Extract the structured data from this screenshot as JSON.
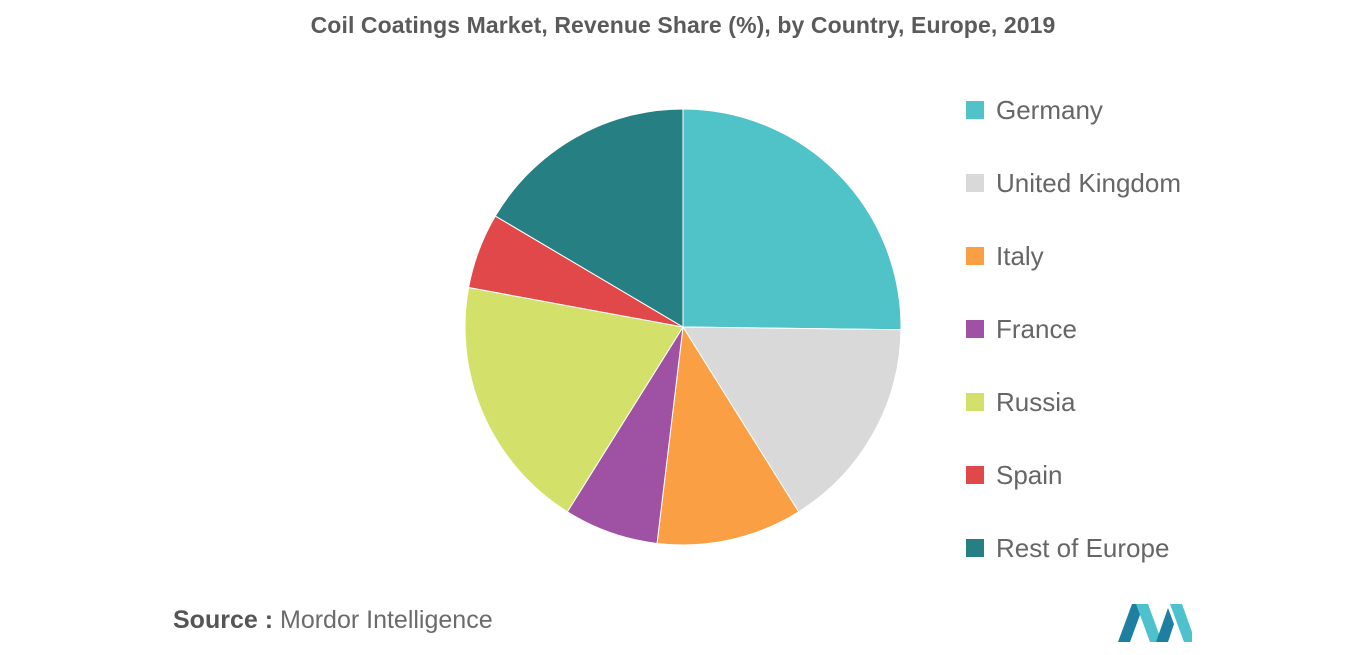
{
  "chart_data": {
    "type": "pie",
    "title": "Coil Coatings Market, Revenue Share (%), by Country, Europe, 2019",
    "categories": [
      "Germany",
      "United Kingdom",
      "Italy",
      "France",
      "Russia",
      "Spain",
      "Rest of Europe"
    ],
    "values": [
      25.2,
      15.9,
      10.8,
      7.0,
      19.0,
      5.6,
      16.5
    ],
    "colors": [
      "#50c3c9",
      "#d9d9d9",
      "#fb9f45",
      "#9f51a4",
      "#d3e16a",
      "#e0484a",
      "#267f82"
    ],
    "start_angle_deg": 0,
    "direction": "clockwise",
    "legend_position": "right"
  },
  "source": {
    "label": "Source",
    "separator": " :",
    "text": " Mordor Intelligence"
  },
  "logo": {
    "name": "mordor-intelligence-logo",
    "colors": [
      "#1f7fa0",
      "#4dc2cc"
    ]
  }
}
